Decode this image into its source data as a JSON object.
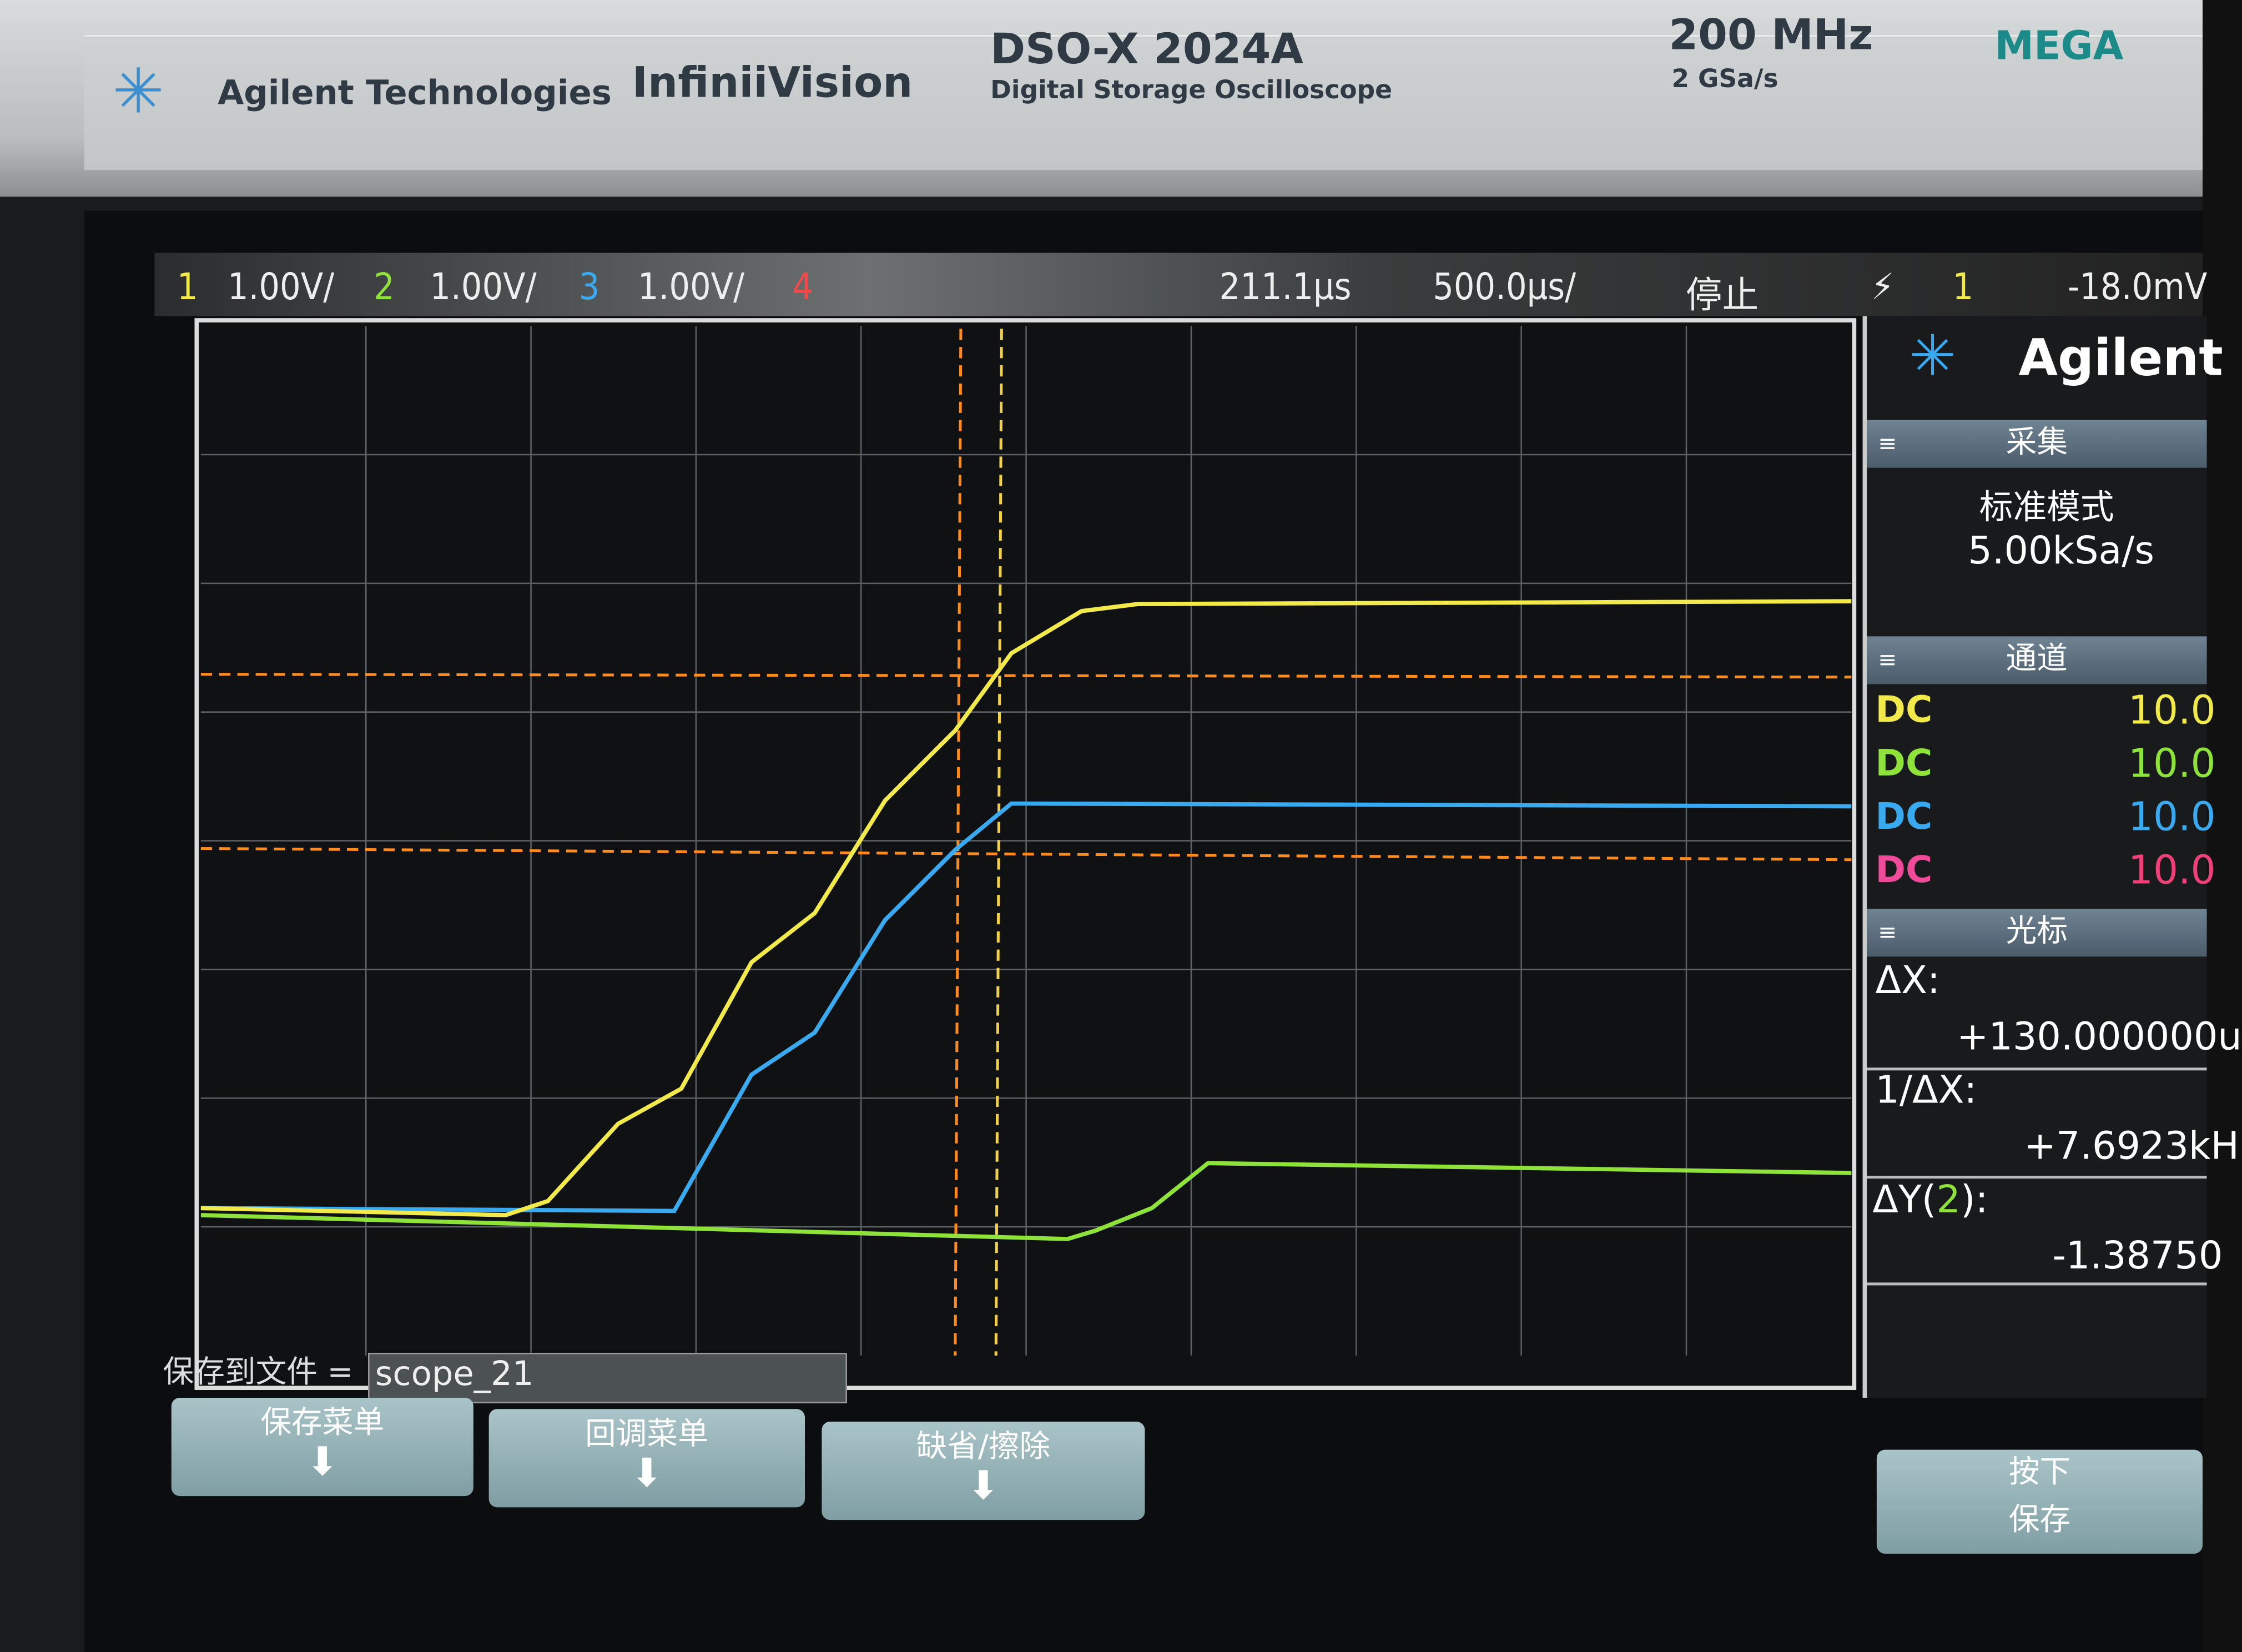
{
  "bezel": {
    "brand": "Agilent Technologies",
    "series": "InfiniiVision",
    "model": "DSO-X 2024A",
    "model_desc": "Digital Storage Oscilloscope",
    "bandwidth": "200 MHz",
    "sample_rate": "2 GSa/s",
    "sticker": "MEGA"
  },
  "status": {
    "ch1_num": "1",
    "ch1_scale": "1.00V/",
    "ch2_num": "2",
    "ch2_scale": "1.00V/",
    "ch3_num": "3",
    "ch3_scale": "1.00V/",
    "ch4_num": "4",
    "delay": "211.1µs",
    "timebase": "500.0µs/",
    "run_state": "停止",
    "trigger_source": "1",
    "trigger_level": "-18.0mV"
  },
  "colors": {
    "ch1": "#f2e94a",
    "ch2": "#8ee23a",
    "ch3": "#3aaaf0",
    "ch4": "#f04a7a",
    "cursor": "#ff8a1e"
  },
  "sidebar": {
    "logo": "Agilent",
    "acq_title": "采集",
    "acq_mode": "标准模式",
    "acq_rate": "5.00kSa/s",
    "chan_title": "通道",
    "channels": [
      {
        "coupling": "DC",
        "probe": "10.0"
      },
      {
        "coupling": "DC",
        "probe": "10.0"
      },
      {
        "coupling": "DC",
        "probe": "10.0"
      },
      {
        "coupling": "DC",
        "probe": "10.0"
      }
    ],
    "cursor_title": "光标",
    "dx_label": "ΔX:",
    "dx_value": "+130.000000u",
    "inv_dx_label": "1/ΔX:",
    "inv_dx_value": "+7.6923kH",
    "dy_label_pre": "ΔY(",
    "dy_ch": "2",
    "dy_label_post": "):",
    "dy_value": "-1.38750"
  },
  "save": {
    "label": "保存到文件 =",
    "filename": "scope_21",
    "btn1": "保存菜单",
    "btn2": "回调菜单",
    "btn3": "缺省/擦除",
    "btn4_line1": "按下",
    "btn4_line2": "保存"
  }
}
